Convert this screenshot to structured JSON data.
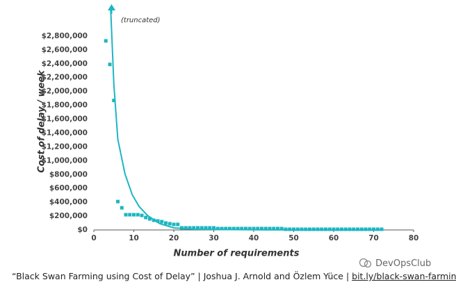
{
  "chart_data": {
    "type": "scatter",
    "annotation": "(truncated)",
    "xlabel": "Number of requirements",
    "ylabel": "Cost of delay / week",
    "color": "#1bb6c1",
    "x": [
      3,
      4,
      5,
      6,
      7,
      8,
      9,
      10,
      11,
      12,
      13,
      14,
      15,
      16,
      17,
      18,
      19,
      20,
      21,
      22,
      23,
      24,
      25,
      26,
      27,
      28,
      29,
      30,
      31,
      32,
      33,
      34,
      35,
      36,
      37,
      38,
      39,
      40,
      41,
      42,
      43,
      44,
      45,
      46,
      47,
      48,
      49,
      50,
      51,
      52,
      53,
      54,
      55,
      56,
      57,
      58,
      59,
      60,
      61,
      62,
      63,
      64,
      65,
      66,
      67,
      68,
      69,
      70,
      71,
      72
    ],
    "values": [
      2730000,
      2390000,
      1870000,
      410000,
      320000,
      220000,
      220000,
      220000,
      220000,
      210000,
      180000,
      160000,
      140000,
      130000,
      120000,
      100000,
      90000,
      80000,
      80000,
      30000,
      30000,
      30000,
      30000,
      30000,
      30000,
      30000,
      30000,
      30000,
      20000,
      20000,
      20000,
      20000,
      20000,
      20000,
      20000,
      20000,
      20000,
      20000,
      20000,
      20000,
      20000,
      20000,
      20000,
      20000,
      20000,
      10000,
      10000,
      10000,
      10000,
      10000,
      10000,
      10000,
      10000,
      10000,
      10000,
      10000,
      10000,
      10000,
      10000,
      10000,
      10000,
      10000,
      10000,
      10000,
      10000,
      10000,
      10000,
      10000,
      10000,
      10000
    ],
    "trend": {
      "color": "#1bb6c1",
      "x": [
        4.2,
        5,
        6,
        7.8,
        9.6,
        11.3,
        13.4,
        16.5,
        20,
        25,
        40,
        72
      ],
      "values": [
        3200000,
        2100000,
        1310000,
        810000,
        510000,
        340000,
        210000,
        90000,
        30000,
        10000,
        2000,
        0
      ]
    },
    "xlim": [
      0,
      80
    ],
    "xticks": [
      0,
      10,
      20,
      30,
      40,
      50,
      60,
      70,
      80
    ],
    "ylim": [
      0,
      3200000
    ],
    "yticks": [
      {
        "value": 0,
        "label": "$0"
      },
      {
        "value": 200000,
        "label": "$200,000"
      },
      {
        "value": 400000,
        "label": "$400,000"
      },
      {
        "value": 600000,
        "label": "$600,000"
      },
      {
        "value": 800000,
        "label": "$800,000"
      },
      {
        "value": 1000000,
        "label": "$1,000,000"
      },
      {
        "value": 1200000,
        "label": "$1,200,000"
      },
      {
        "value": 1400000,
        "label": "$1,400,000"
      },
      {
        "value": 1600000,
        "label": "$1,600,000"
      },
      {
        "value": 1800000,
        "label": "$1,800,000"
      },
      {
        "value": 2000000,
        "label": "$2,000,000"
      },
      {
        "value": 2200000,
        "label": "$2,200,000"
      },
      {
        "value": 2400000,
        "label": "$2,400,000"
      },
      {
        "value": 2600000,
        "label": "$2,600,000"
      },
      {
        "value": 2800000,
        "label": "$2,800,000"
      }
    ],
    "grid": false
  },
  "footer": {
    "citation": "“Black Swan Farming using Cost of Delay” | Joshua J. Arnold and Özlem Yüce |",
    "link": "bit.ly/black-swan-farming"
  },
  "watermark": "DevOpsClub"
}
